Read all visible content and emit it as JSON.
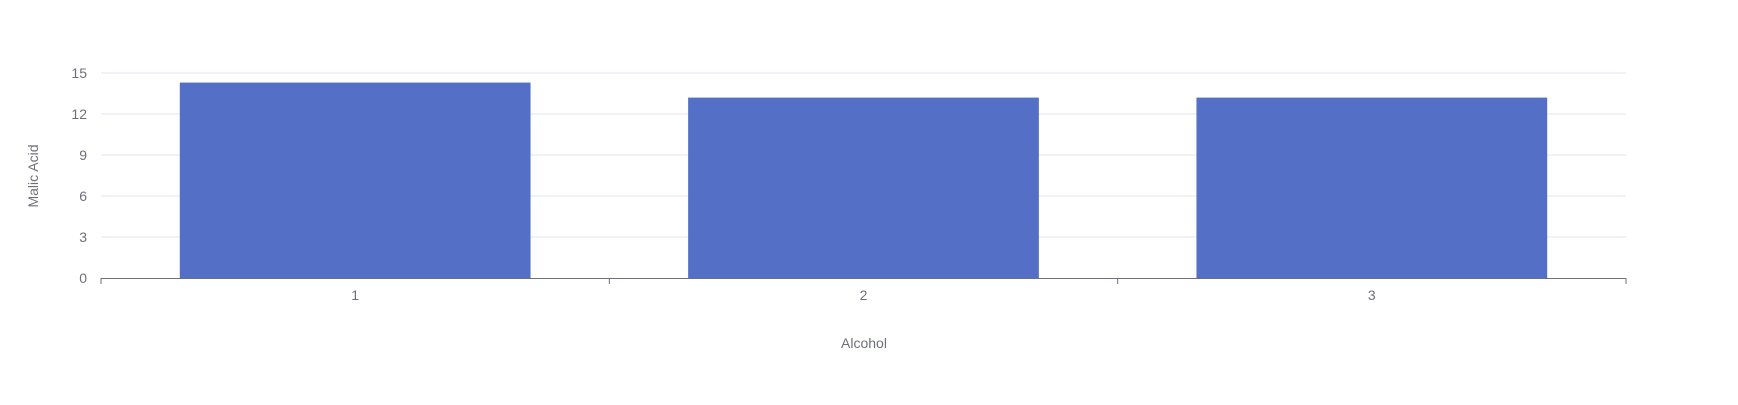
{
  "chart_data": {
    "type": "bar",
    "categories": [
      "1",
      "2",
      "3"
    ],
    "values": [
      14.3,
      13.2,
      13.2
    ],
    "xlabel": "Alcohol",
    "ylabel": "Malic Acid",
    "ylim": [
      0,
      15
    ],
    "yticks": [
      "0",
      "3",
      "6",
      "9",
      "12",
      "15"
    ],
    "grid": true,
    "legend": "none"
  },
  "colors": {
    "bar": "#5470c6",
    "grid": "#e0e6f1",
    "axis": "#6e7079",
    "label": "#6e7079"
  }
}
